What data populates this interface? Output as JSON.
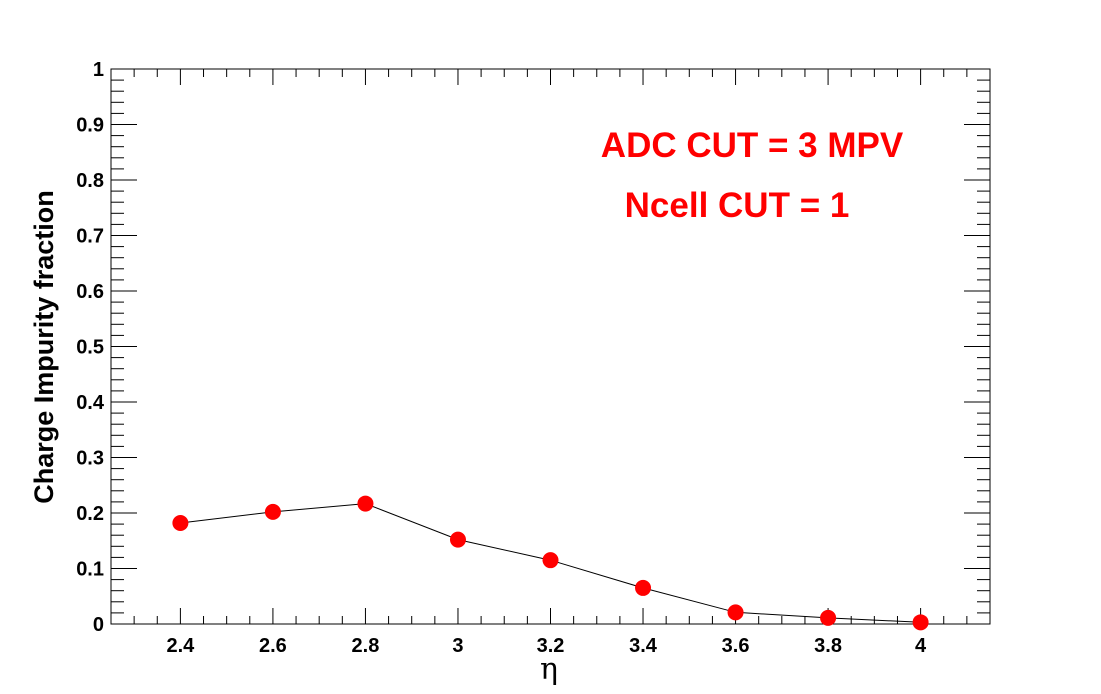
{
  "chart_data": {
    "type": "line",
    "title": "",
    "xlabel": "η",
    "ylabel": "Charge Impurity fraction",
    "xlim": [
      2.25,
      4.15
    ],
    "ylim": [
      0,
      1
    ],
    "grid": false,
    "x_ticks": [
      2.4,
      2.6,
      2.8,
      3,
      3.2,
      3.4,
      3.6,
      3.8,
      4
    ],
    "x_tick_labels": [
      "2.4",
      "2.6",
      "2.8",
      "3",
      "3.2",
      "3.4",
      "3.6",
      "3.8",
      "4"
    ],
    "y_ticks": [
      0,
      0.1,
      0.2,
      0.3,
      0.4,
      0.5,
      0.6,
      0.7,
      0.8,
      0.9,
      1
    ],
    "y_tick_labels": [
      "0",
      "0.1",
      "0.2",
      "0.3",
      "0.4",
      "0.5",
      "0.6",
      "0.7",
      "0.8",
      "0.9",
      "1"
    ],
    "series": [
      {
        "x": [
          2.4,
          2.6,
          2.8,
          3.0,
          3.2,
          3.4,
          3.6,
          3.8,
          4.0
        ],
        "y": [
          0.182,
          0.202,
          0.217,
          0.152,
          0.115,
          0.065,
          0.021,
          0.011,
          0.003
        ],
        "marker_color": "#ff0000",
        "line_color": "#000000"
      }
    ],
    "annotations": [
      {
        "text": "ADC CUT = 3 MPV",
        "color": "#ff0000"
      },
      {
        "text": "Ncell CUT = 1",
        "color": "#ff0000"
      }
    ]
  }
}
